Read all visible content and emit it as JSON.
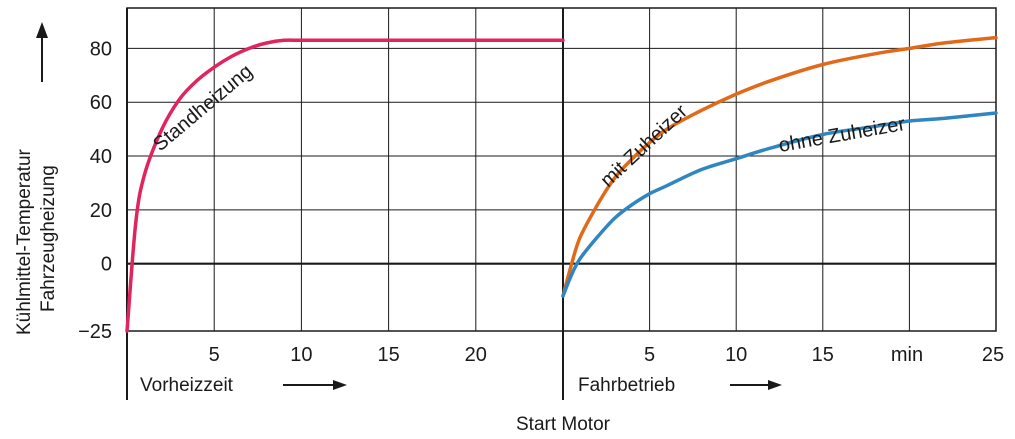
{
  "chart_data": {
    "type": "line",
    "y_axis": {
      "label_line1": "Kühlmittel-Temperatur",
      "label_line2": "Fahrzeugheizung",
      "arrow": "→",
      "ticks": [
        -25,
        0,
        20,
        40,
        60,
        80
      ],
      "ylim": [
        -25,
        95
      ]
    },
    "x_axis_left": {
      "label": "Vorheizzeit",
      "arrow": "→",
      "xlim": [
        0,
        25
      ],
      "ticks": [
        5,
        10,
        15,
        20
      ]
    },
    "x_axis_right": {
      "label": "Fahrbetrieb",
      "arrow": "→",
      "xlim": [
        0,
        25
      ],
      "ticks": [
        5,
        10,
        15,
        25
      ],
      "unit_label": "min"
    },
    "divider_label": "Start Motor",
    "grid": true,
    "colors": {
      "standheizung": "#e0245e",
      "mit_zuheizer": "#e06a1a",
      "ohne_zuheizer": "#2f86c0",
      "grid": "#1a1a1a"
    },
    "series": [
      {
        "name": "Standheizung",
        "panel": "left",
        "x": [
          0,
          0.5,
          1,
          2,
          3,
          4,
          5,
          6,
          7,
          8,
          9,
          10,
          12,
          15,
          20,
          25
        ],
        "y": [
          -25,
          15,
          33,
          50,
          61,
          68,
          73,
          77,
          80,
          82,
          83,
          83,
          83,
          83,
          83,
          83
        ]
      },
      {
        "name": "mit Zuheizer",
        "panel": "right",
        "x": [
          0,
          0.5,
          1,
          2,
          3,
          4,
          5,
          6,
          8,
          10,
          12,
          15,
          18,
          20,
          22,
          25
        ],
        "y": [
          -12,
          0,
          10,
          22,
          32,
          39,
          45,
          50,
          57,
          63,
          68,
          74,
          78,
          80,
          82,
          84
        ]
      },
      {
        "name": "ohne Zuheizer",
        "panel": "right",
        "x": [
          0,
          0.5,
          1,
          2,
          3,
          4,
          5,
          6,
          8,
          10,
          12,
          15,
          18,
          20,
          22,
          25
        ],
        "y": [
          -12,
          -4,
          2,
          10,
          17,
          22,
          26,
          29,
          35,
          39,
          43,
          48,
          51,
          53,
          54,
          56
        ]
      }
    ]
  }
}
